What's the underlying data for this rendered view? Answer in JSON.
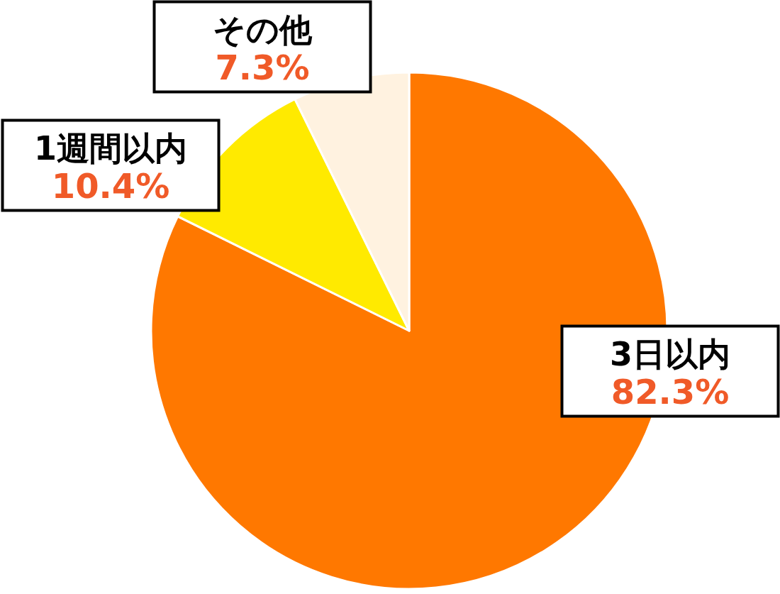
{
  "chart_data": {
    "type": "pie",
    "categories": [
      "3日以内",
      "1週間以内",
      "その他"
    ],
    "values": [
      82.3,
      10.4,
      7.3
    ],
    "colors": [
      "#ff7800",
      "#ffea00",
      "#fff2e0"
    ],
    "value_labels": [
      "82.3%",
      "10.4%",
      "7.3%"
    ],
    "legend": false
  }
}
